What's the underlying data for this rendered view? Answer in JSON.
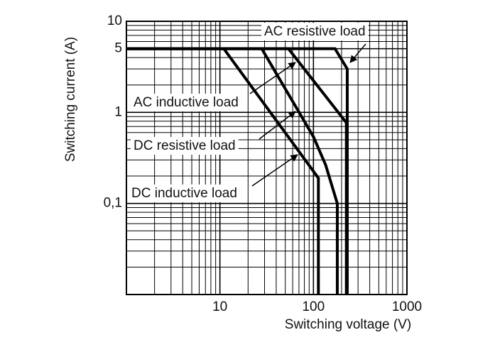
{
  "chart_data": {
    "type": "line",
    "xlabel": "Switching voltage (V)",
    "ylabel": "Switching current (A)",
    "log_x": true,
    "log_y": true,
    "grid": true,
    "xlim": [
      1,
      1000
    ],
    "ylim": [
      0.01,
      10
    ],
    "xticks": [
      10,
      100,
      1000
    ],
    "yticks": [
      10,
      5,
      1,
      {
        "value": 0.1,
        "label": "0,1"
      }
    ],
    "xminor": [
      2,
      3,
      4,
      5,
      6,
      7,
      8,
      9,
      20,
      30,
      40,
      50,
      60,
      70,
      80,
      90,
      200,
      300,
      400,
      500,
      600,
      700,
      800,
      900
    ],
    "yminor": [
      0.02,
      0.03,
      0.04,
      0.05,
      0.06,
      0.07,
      0.08,
      0.09,
      0.2,
      0.3,
      0.4,
      0.5,
      0.6,
      0.7,
      0.8,
      0.9,
      2,
      3,
      4,
      6,
      7,
      8,
      9
    ],
    "series": [
      {
        "name": "AC resistive load",
        "color": "#000000",
        "x": [
          1,
          170,
          230,
          230
        ],
        "values": [
          5,
          5,
          3,
          0.01
        ]
      },
      {
        "name": "AC inductive load",
        "color": "#000000",
        "x": [
          1,
          54,
          225,
          225
        ],
        "values": [
          5,
          5,
          0.77,
          0.01
        ]
      },
      {
        "name": "DC resistive load",
        "color": "#000000",
        "x": [
          1,
          28,
          100,
          135,
          180,
          180
        ],
        "values": [
          5,
          5,
          0.54,
          0.265,
          0.1,
          0.01
        ]
      },
      {
        "name": "DC inductive load",
        "color": "#000000",
        "x": [
          1,
          11,
          113,
          113
        ],
        "values": [
          5,
          5,
          0.19,
          0.01
        ]
      }
    ]
  }
}
